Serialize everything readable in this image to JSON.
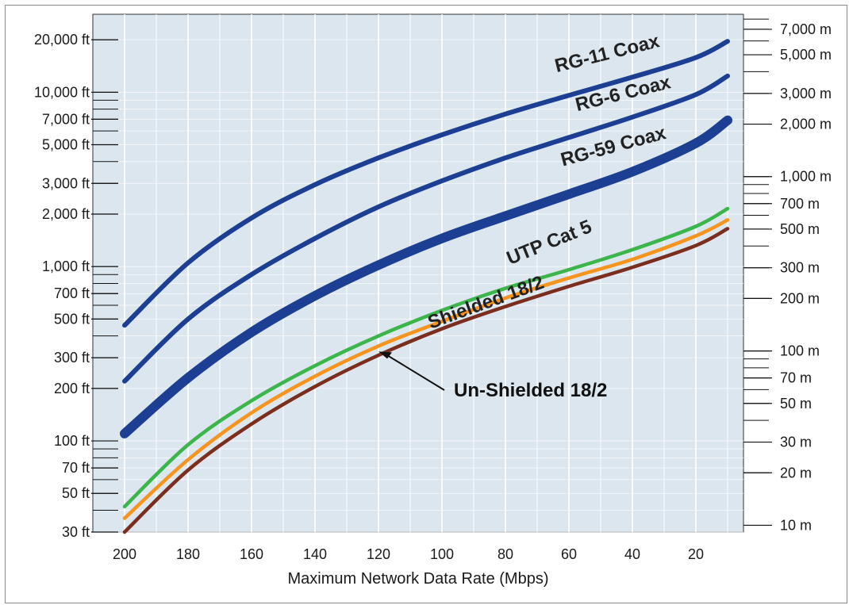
{
  "chart_data": {
    "type": "line",
    "xlabel": "Maximum Network Data Rate (Mbps)",
    "x_ticks": [
      200,
      180,
      160,
      140,
      120,
      100,
      80,
      60,
      40,
      20
    ],
    "x_reversed": true,
    "xlim": [
      210,
      5
    ],
    "y_scale": "log",
    "ylim_ft": [
      30,
      28000
    ],
    "y_ticks_ft": [
      {
        "value": 30,
        "label": "30 ft"
      },
      {
        "value": 50,
        "label": "50 ft"
      },
      {
        "value": 70,
        "label": "70 ft"
      },
      {
        "value": 100,
        "label": "100 ft"
      },
      {
        "value": 200,
        "label": "200 ft"
      },
      {
        "value": 300,
        "label": "300 ft"
      },
      {
        "value": 500,
        "label": "500 ft"
      },
      {
        "value": 700,
        "label": "700 ft"
      },
      {
        "value": 1000,
        "label": "1,000 ft"
      },
      {
        "value": 2000,
        "label": "2,000 ft"
      },
      {
        "value": 3000,
        "label": "3,000 ft"
      },
      {
        "value": 5000,
        "label": "5,000 ft"
      },
      {
        "value": 7000,
        "label": "7,000 ft"
      },
      {
        "value": 10000,
        "label": "10,000 ft"
      },
      {
        "value": 20000,
        "label": "20,000 ft"
      }
    ],
    "y_ticks_m": [
      {
        "value": 10,
        "label": "10 m"
      },
      {
        "value": 20,
        "label": "20 m"
      },
      {
        "value": 30,
        "label": "30 m"
      },
      {
        "value": 50,
        "label": "50 m"
      },
      {
        "value": 70,
        "label": "70 m"
      },
      {
        "value": 100,
        "label": "100 m"
      },
      {
        "value": 200,
        "label": "200 m"
      },
      {
        "value": 300,
        "label": "300 m"
      },
      {
        "value": 500,
        "label": "500 m"
      },
      {
        "value": 700,
        "label": "700 m"
      },
      {
        "value": 1000,
        "label": "1,000 m"
      },
      {
        "value": 2000,
        "label": "2,000 m"
      },
      {
        "value": 3000,
        "label": "3,000 m"
      },
      {
        "value": 5000,
        "label": "5,000 m"
      },
      {
        "value": 7000,
        "label": "7,000 m"
      }
    ],
    "grid": true,
    "colors": {
      "plot_background": "#dbe6ef",
      "grid": "#ffffff",
      "coax": "#1c3f94",
      "utp": "#3cb54a",
      "unshielded": "#f7941d",
      "shielded": "#7b2e1e"
    },
    "series": [
      {
        "name": "RG-11 Coax",
        "color": "#1c3f94",
        "x": [
          200,
          180,
          160,
          140,
          120,
          100,
          80,
          60,
          40,
          20,
          10
        ],
        "y": [
          460,
          1050,
          1900,
          2950,
          4200,
          5700,
          7500,
          9600,
          12200,
          15800,
          19600
        ]
      },
      {
        "name": "RG-6 Coax",
        "color": "#1c3f94",
        "x": [
          200,
          180,
          160,
          140,
          120,
          100,
          80,
          60,
          40,
          20,
          10
        ],
        "y": [
          220,
          500,
          900,
          1450,
          2200,
          3100,
          4200,
          5500,
          7200,
          9700,
          12400
        ]
      },
      {
        "name": "RG-59 Coax",
        "color": "#1c3f94",
        "x": [
          200,
          180,
          160,
          140,
          120,
          100,
          80,
          60,
          40,
          20,
          10
        ],
        "y": [
          110,
          230,
          420,
          680,
          1020,
          1450,
          1950,
          2600,
          3500,
          5100,
          6900
        ]
      },
      {
        "name": "UTP Cat 5",
        "color": "#3cb54a",
        "x": [
          200,
          180,
          160,
          140,
          120,
          100,
          80,
          60,
          40,
          20,
          10
        ],
        "y": [
          42,
          95,
          170,
          270,
          400,
          560,
          750,
          960,
          1250,
          1700,
          2150
        ]
      },
      {
        "name": "Un-Shielded 18/2",
        "color": "#f7941d",
        "x": [
          200,
          180,
          160,
          140,
          120,
          100,
          80,
          60,
          40,
          20,
          10
        ],
        "y": [
          36,
          78,
          145,
          235,
          350,
          485,
          660,
          860,
          1100,
          1500,
          1850
        ]
      },
      {
        "name": "Shielded 18/2",
        "color": "#7b2e1e",
        "x": [
          200,
          180,
          160,
          140,
          120,
          100,
          80,
          60,
          40,
          20,
          10
        ],
        "y": [
          30,
          68,
          125,
          205,
          310,
          440,
          590,
          770,
          990,
          1320,
          1650
        ]
      }
    ]
  }
}
